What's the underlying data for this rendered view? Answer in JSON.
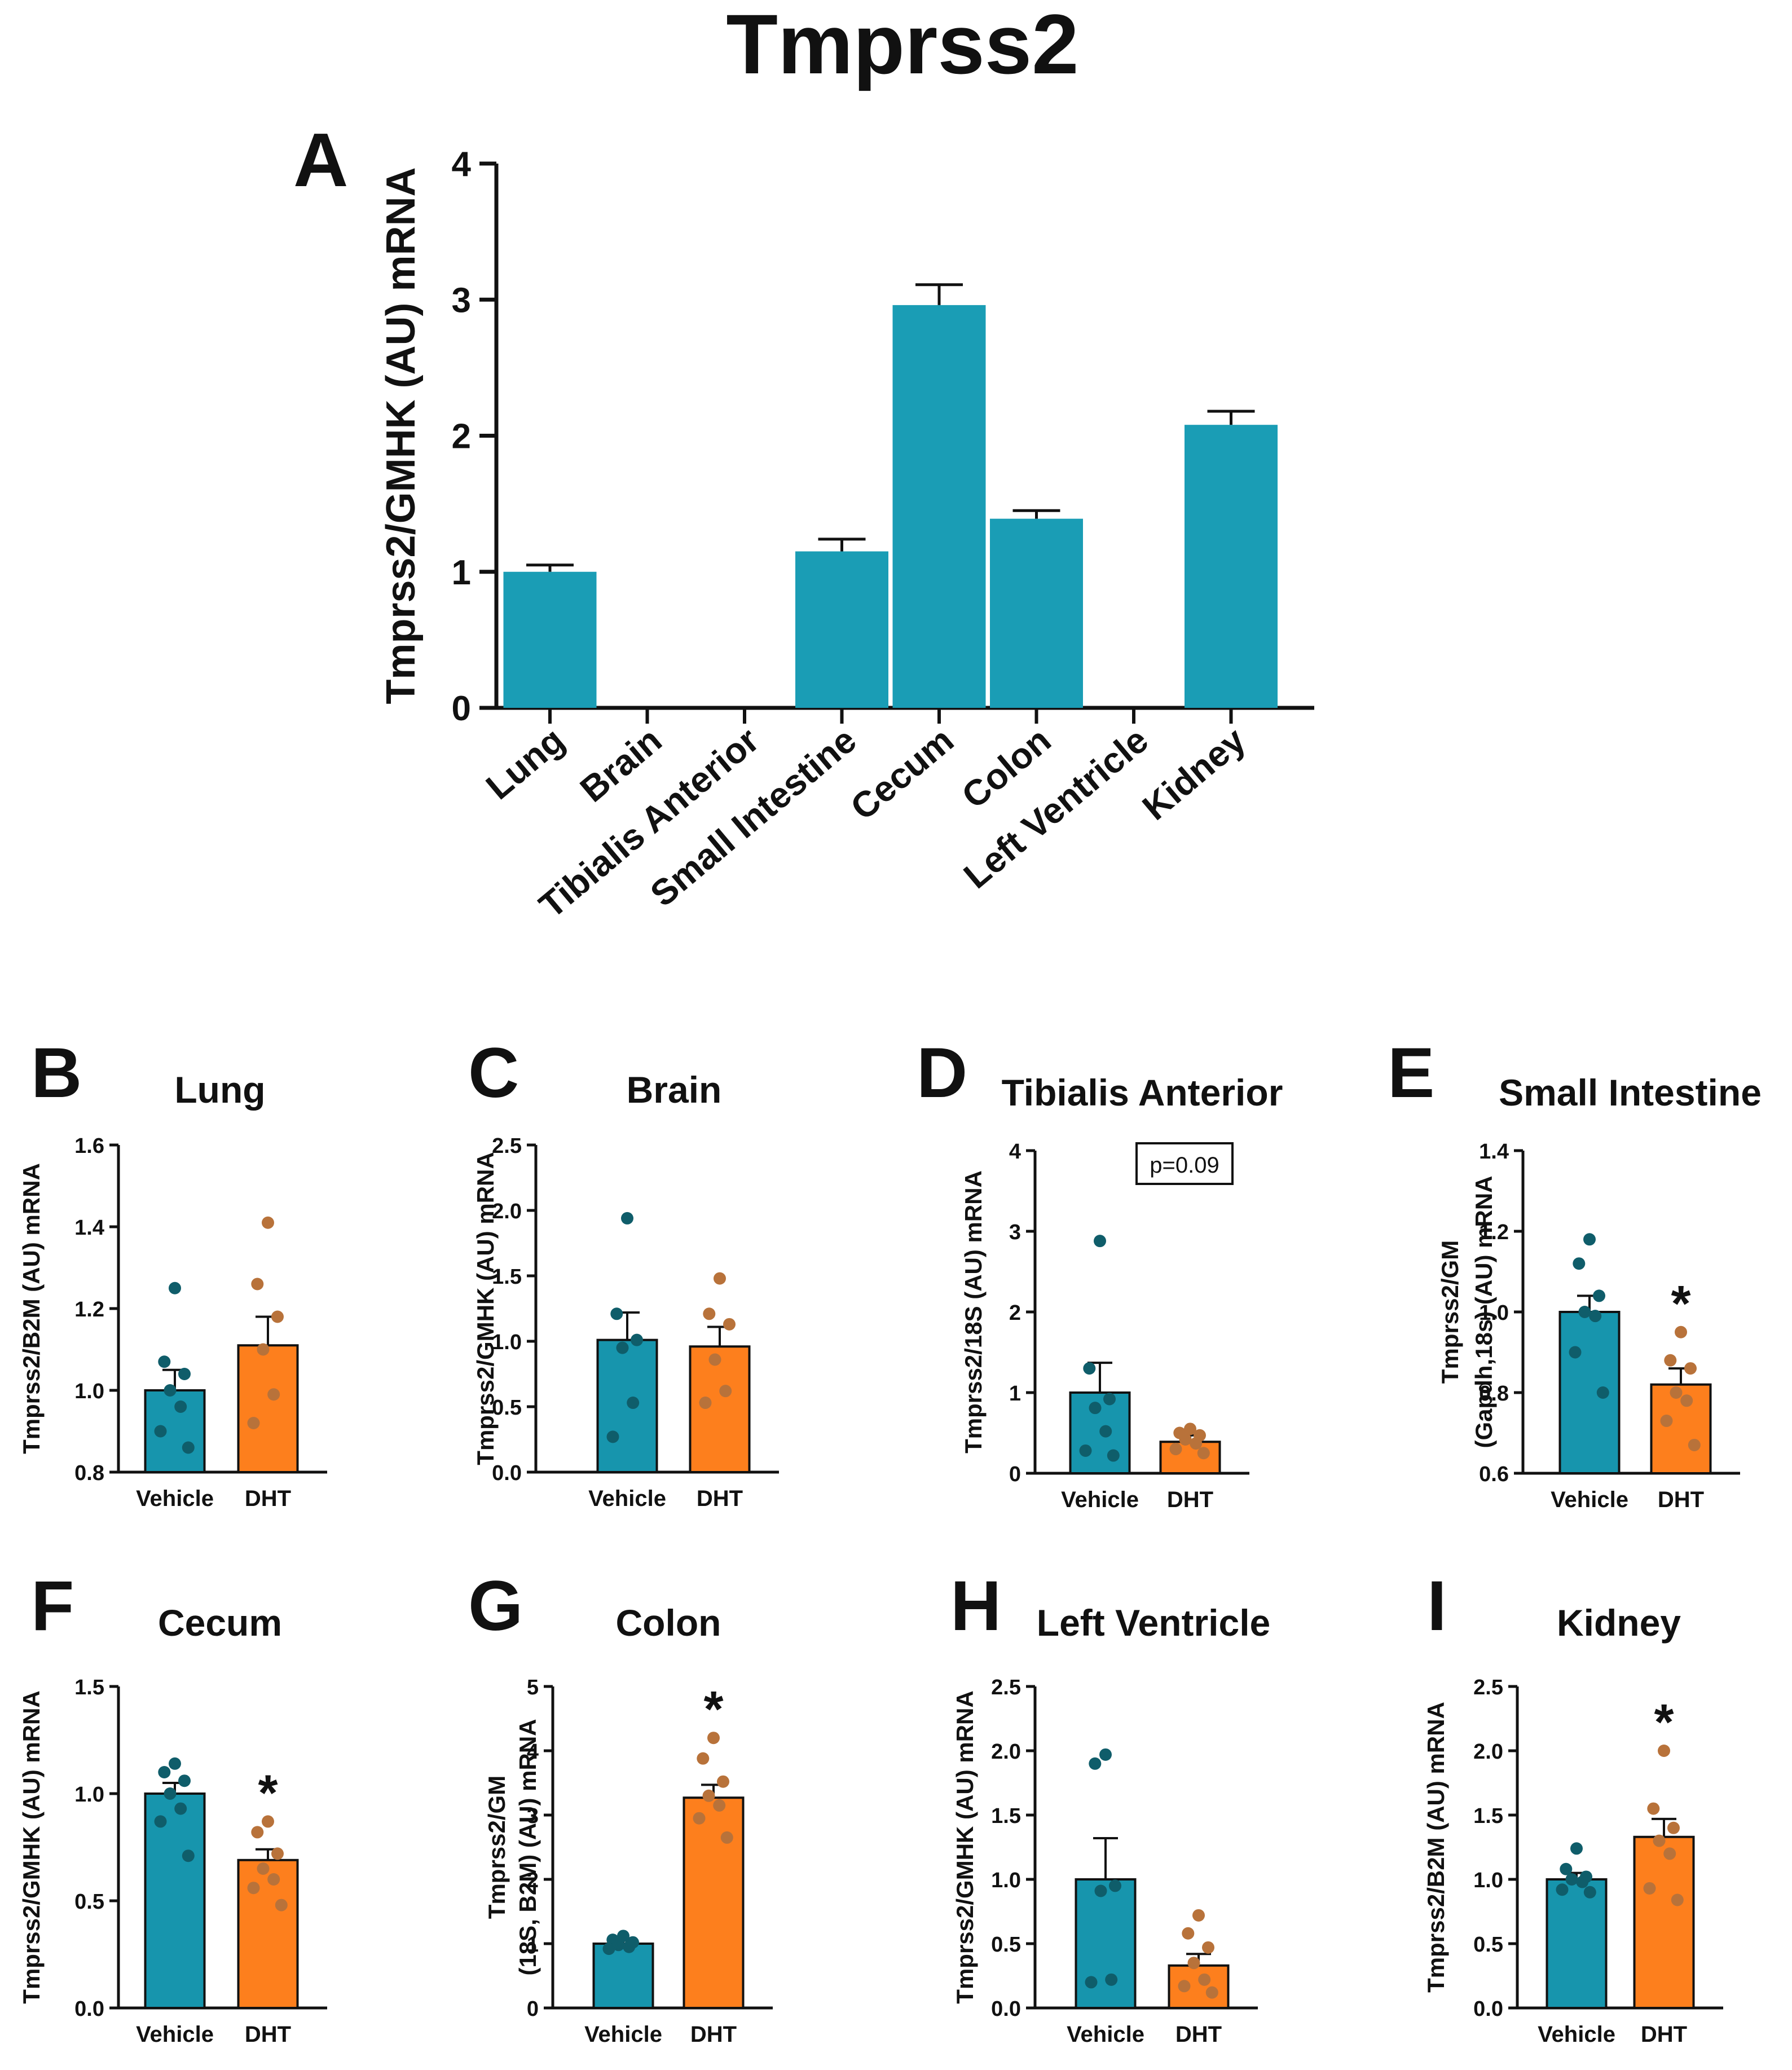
{
  "figure_title": "Tmprss2",
  "colors": {
    "vehicle": "#1795ad",
    "vehicle_dot": "#0f5d6a",
    "dht": "#fd7f1d",
    "dht_dot": "#b8723a",
    "panel_a_bar": "#1a9db5",
    "axis": "#111111"
  },
  "chart_data": [
    {
      "id": "A",
      "type": "bar",
      "panel_letter": "A",
      "title": "",
      "ylabel": "Tmprss2/GMHK (AU) mRNA",
      "ylim": [
        0,
        4
      ],
      "yticks": [
        0,
        1,
        2,
        3,
        4
      ],
      "yticklabels": [
        "0",
        "1",
        "2",
        "3",
        "4"
      ],
      "categories": [
        "Lung",
        "Brain",
        "Tibialis Anterior",
        "Small Intestine",
        "Cecum",
        "Colon",
        "Left Ventricle",
        "Kidney"
      ],
      "values": [
        1.0,
        null,
        null,
        1.15,
        2.96,
        1.39,
        null,
        2.08
      ],
      "errors": [
        0.05,
        null,
        null,
        0.09,
        0.15,
        0.06,
        null,
        0.1
      ]
    },
    {
      "id": "B",
      "type": "bar",
      "panel_letter": "B",
      "title": "Lung",
      "ylabel": [
        "Tmprss2/B2M (AU) mRNA"
      ],
      "ylim": [
        0.8,
        1.6
      ],
      "yticks": [
        0.8,
        1.0,
        1.2,
        1.4,
        1.6
      ],
      "yticklabels": [
        "0.8",
        "1.0",
        "1.2",
        "1.4",
        "1.6"
      ],
      "categories": [
        "Vehicle",
        "DHT"
      ],
      "values": [
        1.0,
        1.11
      ],
      "errors": [
        0.05,
        0.07
      ],
      "points": [
        [
          1.25,
          1.07,
          1.04,
          1.0,
          0.96,
          0.9,
          0.86
        ],
        [
          1.41,
          1.26,
          1.18,
          1.1,
          0.99,
          0.92
        ]
      ],
      "significance": "",
      "annotation": ""
    },
    {
      "id": "C",
      "type": "bar",
      "panel_letter": "C",
      "title": "Brain",
      "ylabel": [
        "Tmprss2/GMHK (AU) mRNA"
      ],
      "ylim": [
        0,
        2.5
      ],
      "yticks": [
        0,
        0.5,
        1.0,
        1.5,
        2.0,
        2.5
      ],
      "yticklabels": [
        "0.0",
        "0.5",
        "1.0",
        "1.5",
        "2.0",
        "2.5"
      ],
      "categories": [
        "Vehicle",
        "DHT"
      ],
      "values": [
        1.01,
        0.96
      ],
      "errors": [
        0.21,
        0.15
      ],
      "points": [
        [
          1.94,
          1.21,
          1.01,
          0.95,
          0.53,
          0.27
        ],
        [
          1.48,
          1.21,
          1.13,
          0.86,
          0.62,
          0.53
        ]
      ],
      "significance": "",
      "annotation": ""
    },
    {
      "id": "D",
      "type": "bar",
      "panel_letter": "D",
      "title": "Tibialis Anterior",
      "ylabel": [
        "Tmprss2/18S (AU) mRNA"
      ],
      "ylim": [
        0,
        4
      ],
      "yticks": [
        0,
        1,
        2,
        3,
        4
      ],
      "yticklabels": [
        "0",
        "1",
        "2",
        "3",
        "4"
      ],
      "categories": [
        "Vehicle",
        "DHT"
      ],
      "values": [
        1.0,
        0.39
      ],
      "errors": [
        0.37,
        0.08
      ],
      "points": [
        [
          2.88,
          1.3,
          0.92,
          0.81,
          0.52,
          0.28,
          0.22
        ],
        [
          0.55,
          0.5,
          0.47,
          0.42,
          0.37,
          0.3,
          0.25
        ]
      ],
      "significance": "",
      "annotation": "p=0.09"
    },
    {
      "id": "E",
      "type": "bar",
      "panel_letter": "E",
      "title": "Small Intestine",
      "ylabel": [
        "Tmprss2/GM",
        "(Gapdh,18s) (AU) mRNA"
      ],
      "ylim": [
        0.6,
        1.4
      ],
      "yticks": [
        0.6,
        0.8,
        1.0,
        1.2,
        1.4
      ],
      "yticklabels": [
        "0.6",
        "0.8",
        "1.0",
        "1.2",
        "1.4"
      ],
      "categories": [
        "Vehicle",
        "DHT"
      ],
      "values": [
        1.0,
        0.82
      ],
      "errors": [
        0.04,
        0.04
      ],
      "points": [
        [
          1.18,
          1.12,
          1.04,
          1.0,
          0.99,
          0.9,
          0.8
        ],
        [
          0.95,
          0.88,
          0.86,
          0.8,
          0.78,
          0.73,
          0.67
        ]
      ],
      "significance": "*",
      "annotation": ""
    },
    {
      "id": "F",
      "type": "bar",
      "panel_letter": "F",
      "title": "Cecum",
      "ylabel": [
        "Tmprss2/GMHK (AU) mRNA"
      ],
      "ylim": [
        0,
        1.5
      ],
      "yticks": [
        0,
        0.5,
        1.0,
        1.5
      ],
      "yticklabels": [
        "0.0",
        "0.5",
        "1.0",
        "1.5"
      ],
      "categories": [
        "Vehicle",
        "DHT"
      ],
      "values": [
        1.0,
        0.69
      ],
      "errors": [
        0.05,
        0.05
      ],
      "points": [
        [
          1.14,
          1.1,
          1.06,
          1.0,
          0.93,
          0.87,
          0.71
        ],
        [
          0.87,
          0.82,
          0.72,
          0.65,
          0.6,
          0.56,
          0.48
        ]
      ],
      "significance": "*",
      "annotation": ""
    },
    {
      "id": "G",
      "type": "bar",
      "panel_letter": "G",
      "title": "Colon",
      "ylabel": [
        "Tmprss2/GM",
        "(18S, B2M) (AU) mRNA"
      ],
      "ylim": [
        0,
        5
      ],
      "yticks": [
        0,
        1,
        2,
        3,
        4,
        5
      ],
      "yticklabels": [
        "0",
        "1",
        "2",
        "3",
        "4",
        "5"
      ],
      "categories": [
        "Vehicle",
        "DHT"
      ],
      "values": [
        1.0,
        3.27
      ],
      "errors": [
        0.05,
        0.2
      ],
      "points": [
        [
          1.12,
          1.06,
          1.02,
          0.98,
          0.95,
          0.92
        ],
        [
          4.2,
          3.88,
          3.52,
          3.3,
          3.15,
          2.95,
          2.65
        ]
      ],
      "significance": "*",
      "annotation": ""
    },
    {
      "id": "H",
      "type": "bar",
      "panel_letter": "H",
      "title": "Left Ventricle",
      "ylabel": [
        "Tmprss2/GMHK (AU) mRNA"
      ],
      "ylim": [
        0,
        2.5
      ],
      "yticks": [
        0,
        0.5,
        1.0,
        1.5,
        2.0,
        2.5
      ],
      "yticklabels": [
        "0.0",
        "0.5",
        "1.0",
        "1.5",
        "2.0",
        "2.5"
      ],
      "categories": [
        "Vehicle",
        "DHT"
      ],
      "values": [
        1.0,
        0.33
      ],
      "errors": [
        0.32,
        0.09
      ],
      "points": [
        [
          1.97,
          1.9,
          0.95,
          0.91,
          0.22,
          0.2
        ],
        [
          0.72,
          0.58,
          0.47,
          0.35,
          0.22,
          0.17,
          0.12
        ]
      ],
      "significance": "",
      "annotation": ""
    },
    {
      "id": "I",
      "type": "bar",
      "panel_letter": "I",
      "title": "Kidney",
      "ylabel": [
        "Tmprss2/B2M (AU) mRNA"
      ],
      "ylim": [
        0,
        2.5
      ],
      "yticks": [
        0,
        0.5,
        1.0,
        1.5,
        2.0,
        2.5
      ],
      "yticklabels": [
        "0.0",
        "0.5",
        "1.0",
        "1.5",
        "2.0",
        "2.5"
      ],
      "categories": [
        "Vehicle",
        "DHT"
      ],
      "values": [
        1.0,
        1.33
      ],
      "errors": [
        0.05,
        0.14
      ],
      "points": [
        [
          1.24,
          1.08,
          1.02,
          1.0,
          0.98,
          0.92,
          0.9
        ],
        [
          2.0,
          1.55,
          1.4,
          1.3,
          1.2,
          0.93,
          0.84
        ]
      ],
      "significance": "*",
      "annotation": ""
    }
  ]
}
